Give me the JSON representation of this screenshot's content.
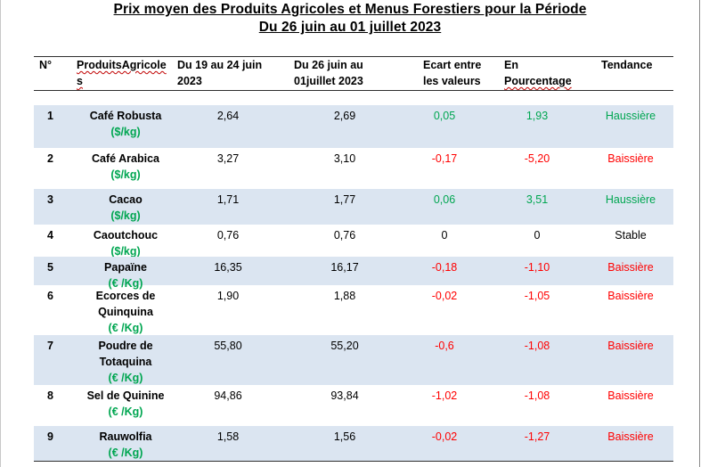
{
  "title": {
    "line1": "Prix moyen des Produits Agricoles et Menus Forestiers pour la Période",
    "line2": "Du 26 juin au 01 juillet  2023"
  },
  "headers": {
    "num": "N°",
    "product_a": "ProduitsAgricole",
    "product_b": "s",
    "period1_a": "Du 19  au 24 juin",
    "period1_b": "2023",
    "period2_a": "Du 26  juin au",
    "period2_b": "01juillet 2023",
    "ecart_a": "Ecart entre",
    "ecart_b": "les valeurs",
    "pct_a": "En",
    "pct_b": "Pourcentage",
    "tendance": "Tendance"
  },
  "colors": {
    "green": "#00a651",
    "red": "#ff0000",
    "row_shade": "#dbe5f1"
  },
  "rows": [
    {
      "num": "1",
      "name1": "Café Robusta",
      "name2": "",
      "unit": "($/kg)",
      "p1": "2,64",
      "p2": "2,69",
      "ecart": "0,05",
      "pct": "1,93",
      "tendance": "Haussière",
      "trend": "up"
    },
    {
      "num": "2",
      "name1": "Café Arabica",
      "name2": "",
      "unit": "($/kg)",
      "p1": "3,27",
      "p2": "3,10",
      "ecart": "-0,17",
      "pct": "-5,20",
      "tendance": "Baissière",
      "trend": "down"
    },
    {
      "num": "3",
      "name1": "Cacao",
      "name2": "",
      "unit": "($/kg)",
      "p1": "1,71",
      "p2": "1,77",
      "ecart": "0,06",
      "pct": "3,51",
      "tendance": "Haussière",
      "trend": "up"
    },
    {
      "num": "4",
      "name1": "Caoutchouc",
      "name2": "",
      "unit": "($/kg)",
      "p1": "0,76",
      "p2": "0,76",
      "ecart": "0",
      "pct": "0",
      "tendance": "Stable",
      "trend": "stable"
    },
    {
      "num": "5",
      "name1": "Papaïne",
      "name2": "",
      "unit": "(€ /Kg)",
      "p1": "16,35",
      "p2": "16,17",
      "ecart": "-0,18",
      "pct": "-1,10",
      "tendance": "Baissière",
      "trend": "down"
    },
    {
      "num": "6",
      "name1": "Ecorces de",
      "name2": "Quinquina",
      "unit": "(€ /Kg)",
      "p1": "1,90",
      "p2": "1,88",
      "ecart": "-0,02",
      "pct": "-1,05",
      "tendance": "Baissière",
      "trend": "down"
    },
    {
      "num": "7",
      "name1": "Poudre de",
      "name2": "Totaquina",
      "unit": "(€ /Kg)",
      "p1": "55,80",
      "p2": "55,20",
      "ecart": "-0,6",
      "pct": "-1,08",
      "tendance": "Baissière",
      "trend": "down"
    },
    {
      "num": "8",
      "name1": "Sel de Quinine",
      "name2": "",
      "unit": "(€ /Kg)",
      "p1": "94,86",
      "p2": "93,84",
      "ecart": "-1,02",
      "pct": "-1,08",
      "tendance": "Baissière",
      "trend": "down"
    },
    {
      "num": "9",
      "name1": "Rauwolfia",
      "name2": "",
      "unit": "(€ /Kg)",
      "p1": "1,58",
      "p2": "1,56",
      "ecart": "-0,02",
      "pct": "-1,27",
      "tendance": "Baissière",
      "trend": "down"
    }
  ]
}
